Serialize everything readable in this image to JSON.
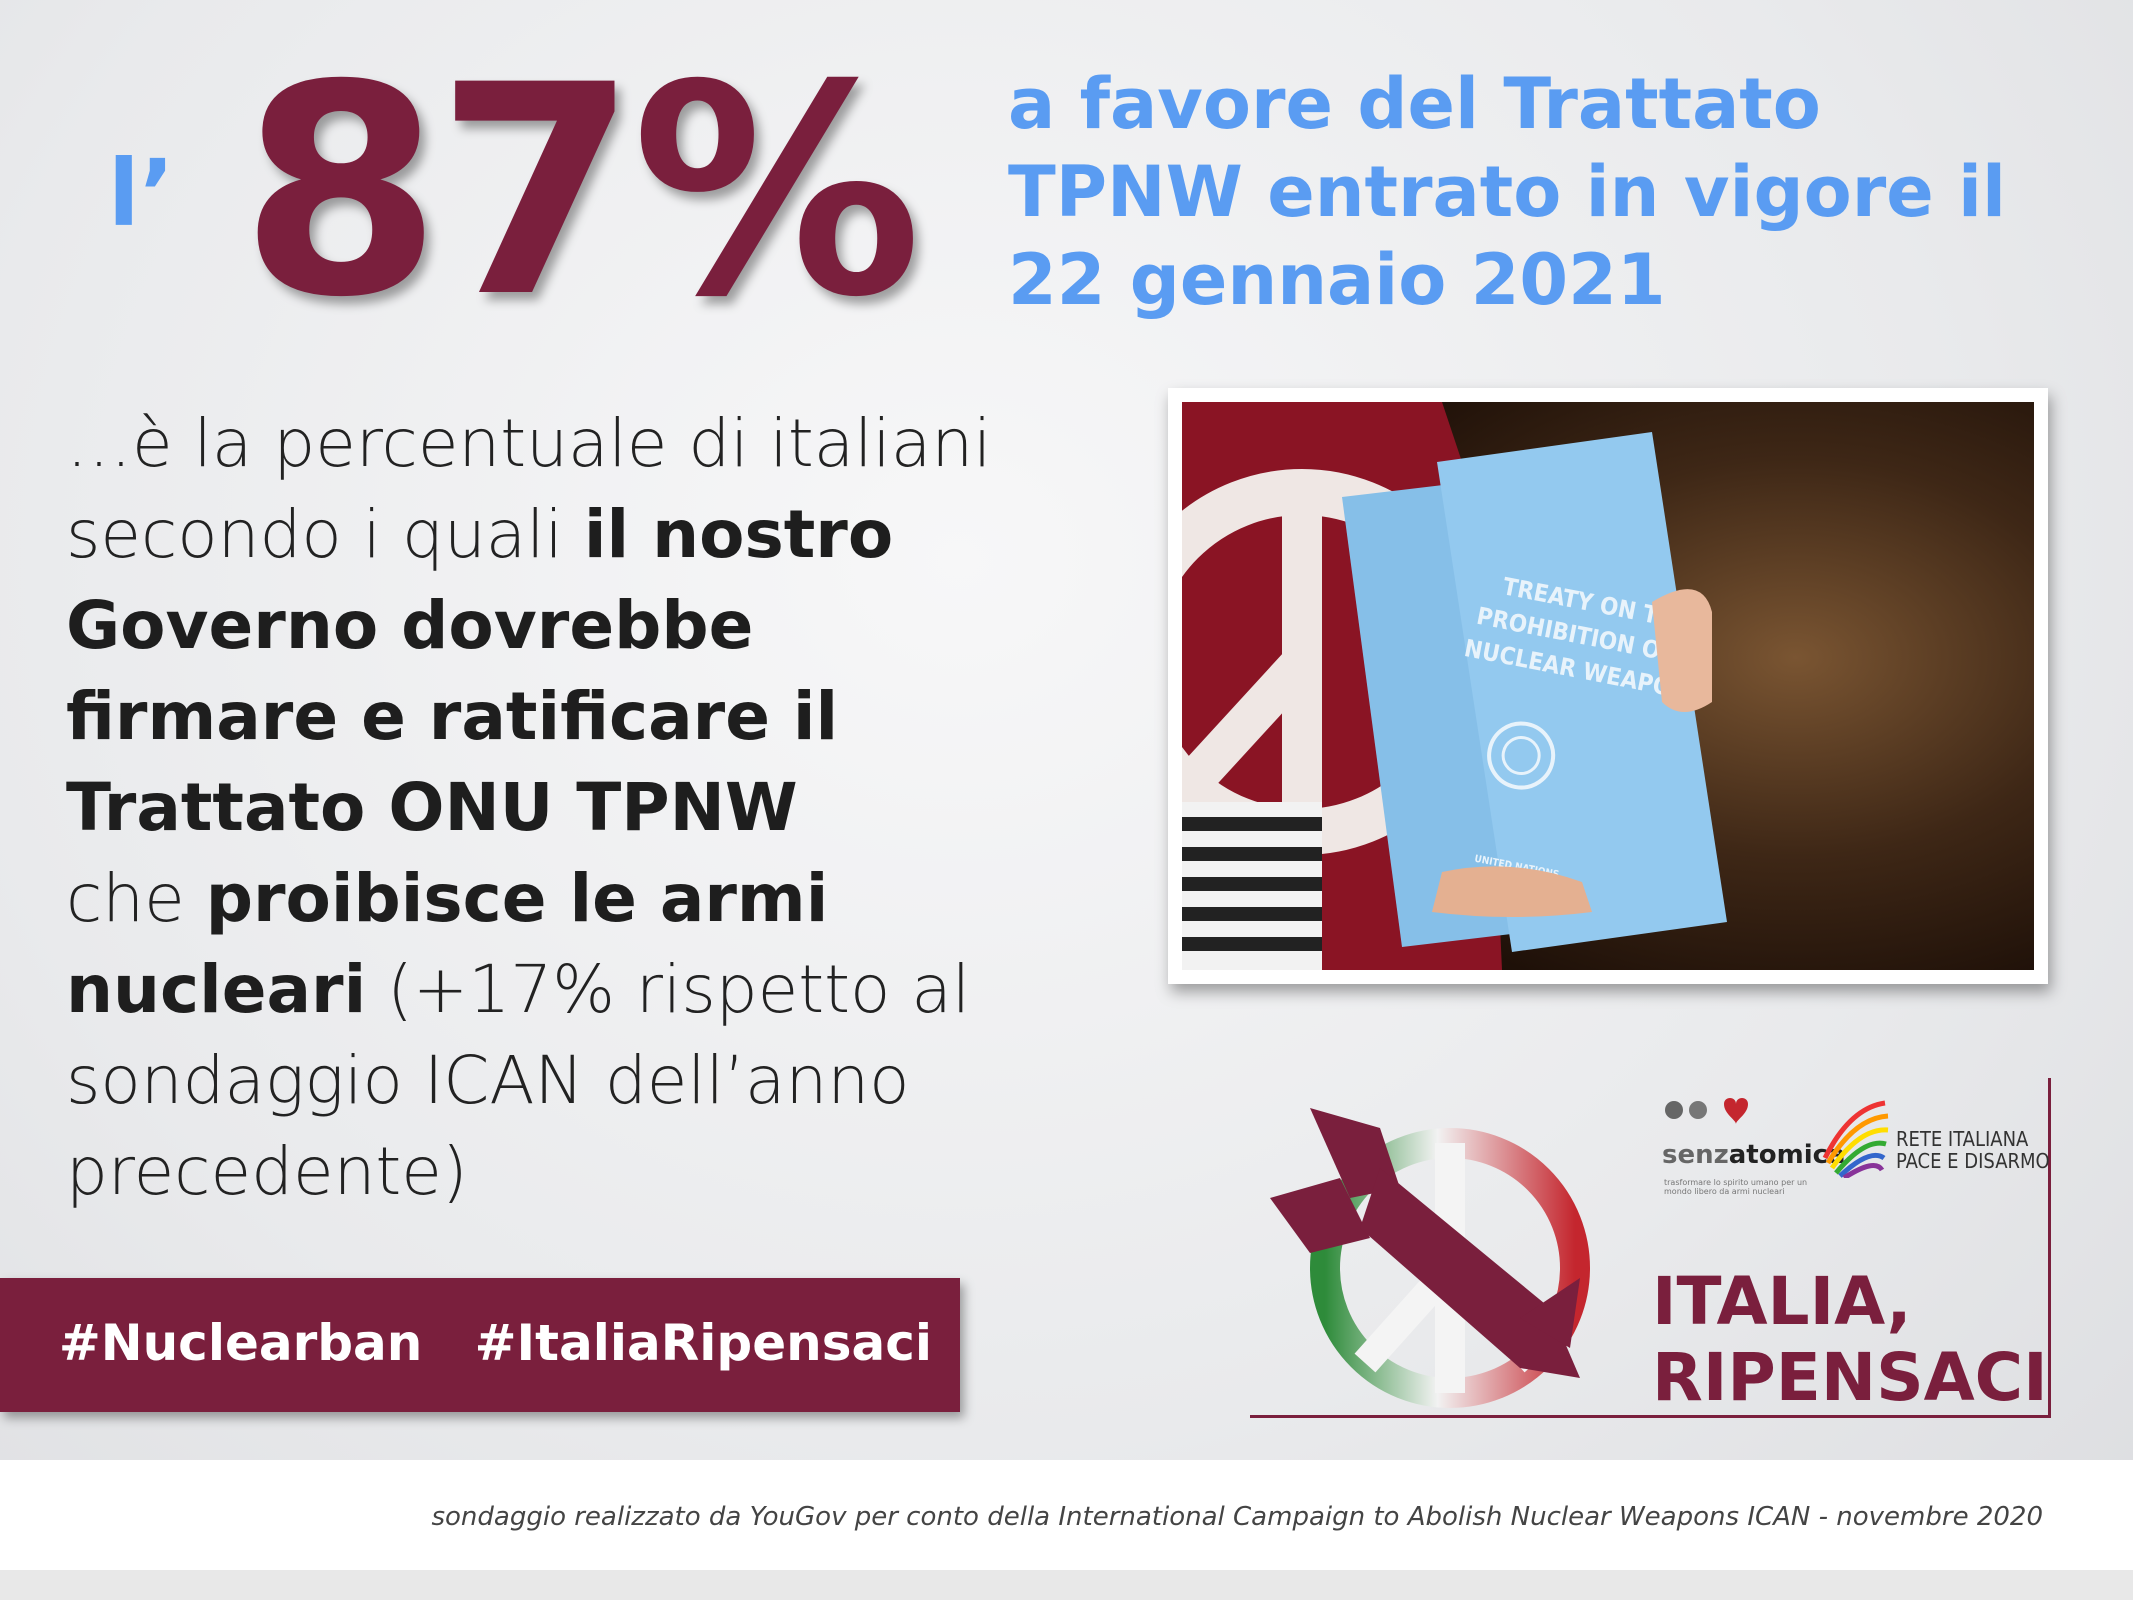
{
  "stat": {
    "prefix": "l’",
    "value": "87%"
  },
  "headline": {
    "line1": "a favore del  Trattato",
    "line2": "TPNW entrato in vigore il",
    "line3": "22 gennaio 2021"
  },
  "body": {
    "l1": "…è la percentuale di italiani",
    "l2a": "secondo i quali ",
    "l2b": "il nostro",
    "l3": "Governo dovrebbe",
    "l4": "firmare e ratificare il",
    "l5": "Trattato ONU TPNW",
    "l6a": "che ",
    "l6b": "proibisce le armi",
    "l7a": "nucleari",
    "l7b": " (+17% rispetto al",
    "l8": "sondaggio ICAN dell’anno",
    "l9": "precedente)"
  },
  "hashtags": "#Nuclearban   #ItaliaRipensaci",
  "photo": {
    "booklet_text": "TREATY ON THE PROHIBITION OF NUCLEAR WEAPONS",
    "booklet_l1": "TREATY ON THE",
    "booklet_l2": "PROHIBITION OF",
    "booklet_l3": "NUCLEAR WEAPONS",
    "booklet_footer": "UNITED NATIONS"
  },
  "logos": {
    "senza_a": "senz",
    "senza_b": "atomica",
    "senza_sub": "trasformare lo spirito umano per un mondo libero da armi nucleari",
    "rete_l1": "RETE ITALIANA",
    "rete_l2": "PACE E DISARMO",
    "campaign_l1": "ITALIA,",
    "campaign_l2": "RIPENSACI"
  },
  "footer": {
    "note": "sondaggio realizzato da YouGov per conto della International Campaign to Abolish Nuclear Weapons ICAN - novembre 2020"
  },
  "colors": {
    "maroon": "#7a1f3d",
    "blue": "#5a9cf2",
    "booklet_blue": "#8cc4ec"
  }
}
